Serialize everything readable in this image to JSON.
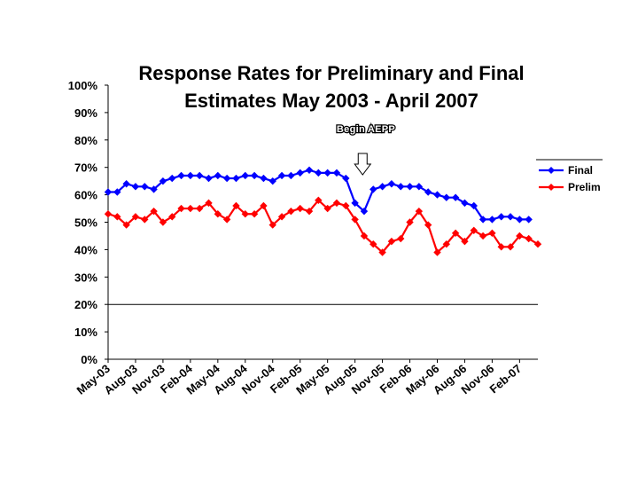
{
  "chart_data": {
    "type": "line",
    "title": [
      "Response Rates for Preliminary and Final",
      "Estimates May 2003 - April 2007"
    ],
    "xlabel": "",
    "ylabel": "",
    "ylim": [
      0,
      100
    ],
    "yticks": [
      "0%",
      "10%",
      "20%",
      "30%",
      "40%",
      "50%",
      "60%",
      "70%",
      "80%",
      "90%",
      "100%"
    ],
    "tick_labels": [
      "May-03",
      "Aug-03",
      "Nov-03",
      "Feb-04",
      "May-04",
      "Aug-04",
      "Nov-04",
      "Feb-05",
      "May-05",
      "Aug-05",
      "Nov-05",
      "Feb-06",
      "May-06",
      "Aug-06",
      "Nov-06",
      "Feb-07"
    ],
    "annotation": {
      "text": "Begin AEPP",
      "month_index": 29
    },
    "legend": {
      "position": "right"
    },
    "series": [
      {
        "name": "Final",
        "color": "#0000ff",
        "values": [
          61,
          61,
          64,
          63,
          63,
          62,
          65,
          66,
          67,
          67,
          67,
          66,
          67,
          66,
          66,
          67,
          67,
          66,
          65,
          67,
          67,
          68,
          69,
          68,
          68,
          68,
          66,
          57,
          54,
          62,
          63,
          64,
          63,
          63,
          63,
          61,
          60,
          59,
          59,
          57,
          56,
          51,
          51,
          52,
          52,
          51,
          51
        ]
      },
      {
        "name": "Prelim",
        "color": "#ff0000",
        "values": [
          53,
          52,
          49,
          52,
          51,
          54,
          50,
          52,
          55,
          55,
          55,
          57,
          53,
          51,
          56,
          53,
          53,
          56,
          49,
          52,
          54,
          55,
          54,
          58,
          55,
          57,
          56,
          51,
          45,
          42,
          39,
          43,
          44,
          50,
          54,
          49,
          39,
          42,
          46,
          43,
          47,
          45,
          46,
          41,
          41,
          45,
          44,
          42
        ]
      }
    ]
  }
}
